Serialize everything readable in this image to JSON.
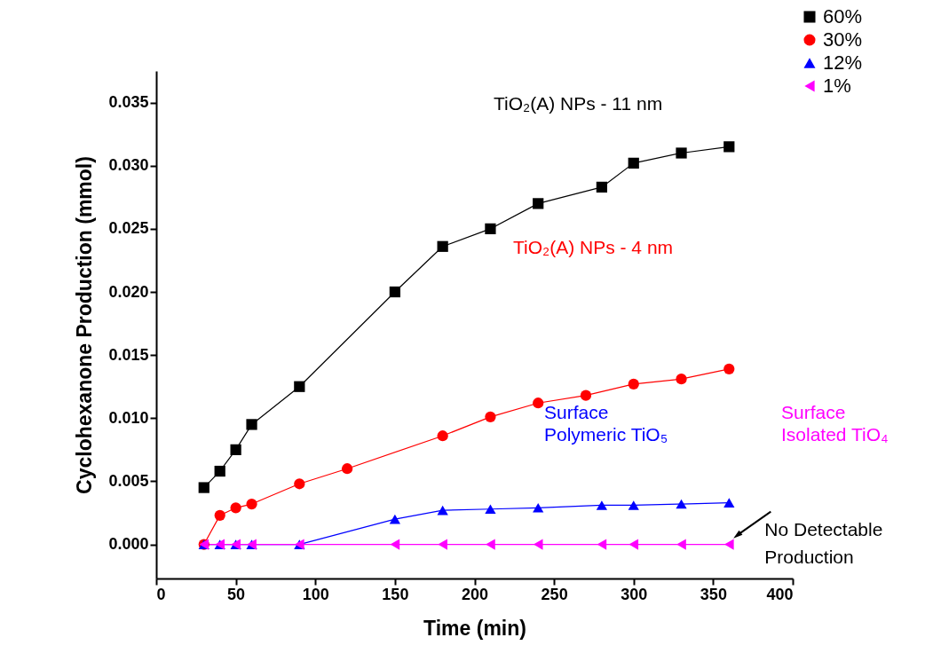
{
  "chart_data": {
    "type": "line",
    "xlabel": "Time (min)",
    "ylabel": "Cyclohexanone Production (mmol)",
    "xlim": [
      0,
      400
    ],
    "xticks": [
      0,
      50,
      100,
      150,
      200,
      250,
      300,
      350,
      400
    ],
    "ylim": [
      -0.0027,
      0.0375
    ],
    "yticks": [
      {
        "value": 0,
        "label": "0.000"
      },
      {
        "value": 0.005,
        "label": "0.005"
      },
      {
        "value": 0.01,
        "label": "0.010"
      },
      {
        "value": 0.015,
        "label": "0.015"
      },
      {
        "value": 0.02,
        "label": "0.020"
      },
      {
        "value": 0.025,
        "label": "0.025"
      },
      {
        "value": 0.03,
        "label": "0.030"
      },
      {
        "value": 0.035,
        "label": "0.035"
      }
    ],
    "grid": false,
    "legend": "top right",
    "line_style": "solid",
    "series": [
      {
        "name": "60%",
        "color": "#000000",
        "marker": "square",
        "x": [
          30,
          40,
          50,
          60,
          90,
          150,
          180,
          210,
          240,
          280,
          300,
          330,
          360
        ],
        "values": [
          0.0045,
          0.0058,
          0.0075,
          0.0095,
          0.0125,
          0.02,
          0.0236,
          0.025,
          0.027,
          0.0283,
          0.0302,
          0.031,
          0.0315
        ]
      },
      {
        "name": "30%",
        "color": "#ff0000",
        "marker": "circle",
        "x": [
          30,
          40,
          50,
          60,
          90,
          120,
          180,
          210,
          240,
          270,
          300,
          330,
          360
        ],
        "values": [
          0,
          0.0023,
          0.0029,
          0.0032,
          0.0048,
          0.006,
          0.0086,
          0.0101,
          0.0112,
          0.0118,
          0.0127,
          0.0131,
          0.0139
        ]
      },
      {
        "name": "12%",
        "color": "#0000ff",
        "marker": "triangle",
        "x": [
          30,
          40,
          50,
          60,
          90,
          150,
          180,
          210,
          240,
          280,
          300,
          330,
          360
        ],
        "values": [
          0,
          0,
          0,
          0,
          0,
          0.002,
          0.0027,
          0.0028,
          0.0029,
          0.0031,
          0.0031,
          0.0032,
          0.0033
        ]
      },
      {
        "name": "1%",
        "color": "#ff00ff",
        "marker": "triangle-left",
        "x": [
          30,
          40,
          50,
          60,
          90,
          150,
          180,
          210,
          240,
          280,
          300,
          330,
          360
        ],
        "values": [
          0,
          0,
          0,
          0,
          0,
          0,
          0,
          0,
          0,
          0,
          0,
          0,
          0
        ]
      }
    ],
    "annotations": [
      "TiO₂(A) NPs - 11 nm",
      "TiO₂(A) NPs - 4 nm",
      "Surface\nPolymeric TiO₅",
      "Surface\nIsolated TiO₄",
      {
        "text": "No Detectable\nProduction",
        "x": 360,
        "y": 0
      }
    ]
  }
}
